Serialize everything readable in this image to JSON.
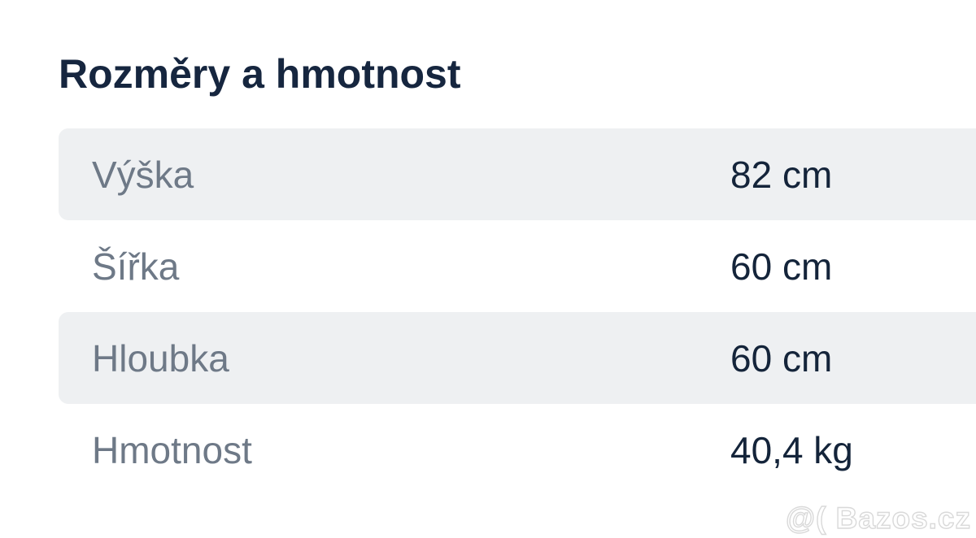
{
  "section": {
    "title": "Rozměry a hmotnost"
  },
  "table": {
    "rows": [
      {
        "label": "Výška",
        "value": "82 cm"
      },
      {
        "label": "Šířka",
        "value": "60 cm"
      },
      {
        "label": "Hloubka",
        "value": "60 cm"
      },
      {
        "label": "Hmotnost",
        "value": "40,4 kg"
      }
    ]
  },
  "watermark": {
    "text": "@( Bazos.cz"
  },
  "colors": {
    "title_text": "#16263f",
    "row_alt_background": "#eef0f2",
    "label_text": "#6e7987",
    "value_text": "#14243a",
    "watermark_outline": "#d9d9d9",
    "page_background": "#ffffff"
  }
}
